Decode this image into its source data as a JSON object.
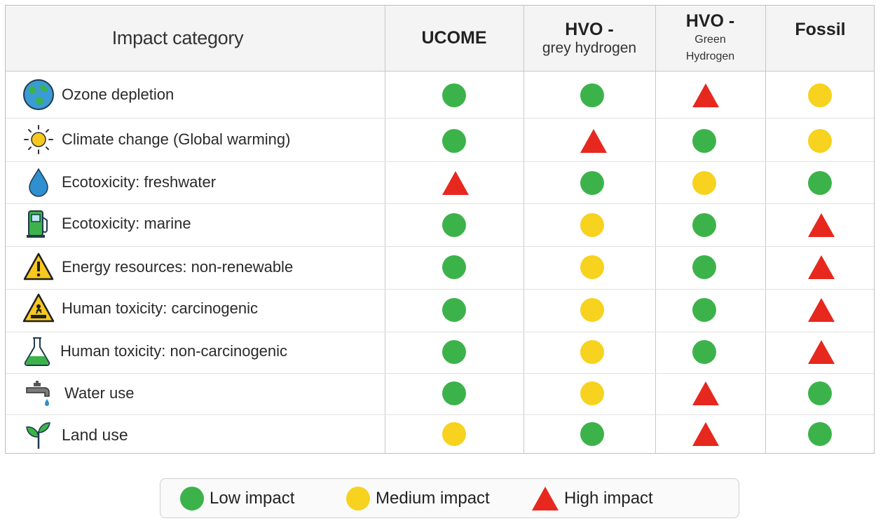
{
  "header": {
    "impact_category": "Impact category",
    "col1": "UCOME",
    "col2_title": "HVO -",
    "col2_sub": "grey hydrogen",
    "col3_title": "HVO -",
    "col3_sub1": "Green",
    "col3_sub2": "Hydrogen",
    "col4": "Fossil"
  },
  "rows": [
    {
      "label": "Ozone depletion",
      "icon": "globe-icon",
      "ratings": [
        "low",
        "low",
        "high",
        "medium"
      ]
    },
    {
      "label": "Climate change (Global warming)",
      "icon": "sun-icon",
      "ratings": [
        "low",
        "high",
        "low",
        "medium"
      ]
    },
    {
      "label": "Ecotoxicity: freshwater",
      "icon": "water-drop-icon",
      "ratings": [
        "high",
        "low",
        "medium",
        "low"
      ]
    },
    {
      "label": "Ecotoxicity: marine",
      "icon": "fuel-pump-icon",
      "ratings": [
        "low",
        "medium",
        "low",
        "high"
      ]
    },
    {
      "label": "Energy resources: non-renewable",
      "icon": "warning-icon",
      "ratings": [
        "low",
        "medium",
        "low",
        "high"
      ]
    },
    {
      "label": "Human toxicity: carcinogenic",
      "icon": "toxic-warning-icon",
      "ratings": [
        "low",
        "medium",
        "low",
        "high"
      ]
    },
    {
      "label": "Human toxicity: non-carcinogenic",
      "icon": "flask-icon",
      "ratings": [
        "low",
        "medium",
        "low",
        "high"
      ]
    },
    {
      "label": "Water use",
      "icon": "faucet-icon",
      "ratings": [
        "low",
        "medium",
        "high",
        "low"
      ]
    },
    {
      "label": "Land use",
      "icon": "sprout-icon",
      "ratings": [
        "medium",
        "low",
        "high",
        "low"
      ]
    }
  ],
  "legend": {
    "low": "Low impact",
    "medium": "Medium impact",
    "high": "High impact"
  },
  "colors": {
    "low": "#3cb34a",
    "medium": "#f7d21e",
    "high": "#e6281f"
  }
}
